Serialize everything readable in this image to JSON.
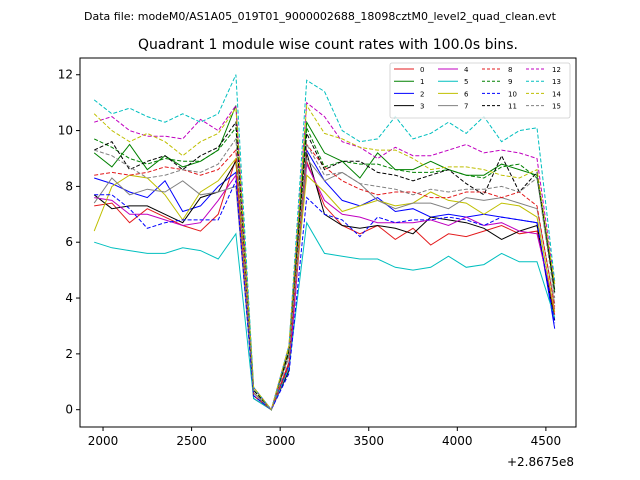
{
  "chart_data": {
    "type": "line",
    "suptitle": "Data file: modeM0/AS1A05_019T01_9000002688_18098cztM0_level2_quad_clean.evt",
    "title": "Quadrant 1 module wise count rates with 100.0s bins.",
    "xlabel": "",
    "ylabel": "",
    "x_offset_label": "+2.8675e8",
    "xlim": [
      1870,
      4670
    ],
    "ylim": [
      -0.62,
      12.6
    ],
    "x_ticks": [
      2000,
      2500,
      3000,
      3500,
      4000,
      4500
    ],
    "y_ticks": [
      0,
      2,
      4,
      6,
      8,
      10,
      12
    ],
    "x": [
      1950,
      2050,
      2150,
      2250,
      2350,
      2450,
      2550,
      2650,
      2750,
      2850,
      2950,
      3050,
      3150,
      3250,
      3350,
      3450,
      3550,
      3650,
      3750,
      3850,
      3950,
      4050,
      4150,
      4250,
      4350,
      4450,
      4550
    ],
    "legend": {
      "location": "upper-right",
      "columns": 4
    },
    "series": [
      {
        "name": "0",
        "color": "#e31a1c",
        "dash": "solid",
        "values": [
          7.3,
          7.4,
          6.7,
          7.2,
          6.9,
          6.6,
          6.4,
          7.0,
          9.0,
          0.5,
          0.0,
          1.7,
          8.9,
          7.3,
          6.6,
          6.3,
          6.6,
          6.1,
          6.5,
          5.9,
          6.3,
          6.2,
          6.4,
          6.6,
          6.3,
          6.4,
          3.4
        ]
      },
      {
        "name": "1",
        "color": "#008000",
        "dash": "solid",
        "values": [
          9.2,
          8.7,
          9.5,
          8.6,
          9.1,
          8.7,
          8.9,
          9.3,
          10.9,
          0.8,
          0.0,
          2.2,
          10.3,
          9.2,
          8.9,
          8.3,
          9.2,
          8.6,
          8.6,
          8.9,
          8.6,
          8.4,
          8.4,
          8.8,
          8.6,
          8.4,
          4.3
        ]
      },
      {
        "name": "2",
        "color": "#0000ff",
        "dash": "solid",
        "values": [
          8.3,
          8.1,
          7.8,
          7.6,
          8.2,
          7.1,
          7.3,
          8.0,
          8.5,
          0.5,
          0.0,
          1.6,
          9.3,
          8.2,
          7.5,
          7.3,
          7.6,
          7.1,
          7.2,
          6.9,
          7.0,
          6.9,
          7.0,
          6.9,
          6.8,
          6.7,
          2.9
        ]
      },
      {
        "name": "3",
        "color": "#000000",
        "dash": "solid",
        "values": [
          7.7,
          7.2,
          7.3,
          7.3,
          7.0,
          6.7,
          7.6,
          7.8,
          8.9,
          0.4,
          0.0,
          1.4,
          9.2,
          7.0,
          6.6,
          6.5,
          6.6,
          6.5,
          6.3,
          6.9,
          6.8,
          6.7,
          6.5,
          6.1,
          6.4,
          6.6,
          3.2
        ]
      },
      {
        "name": "4",
        "color": "#c000c0",
        "dash": "solid",
        "values": [
          7.6,
          7.5,
          7.0,
          7.0,
          6.8,
          6.6,
          6.7,
          7.5,
          8.4,
          0.6,
          0.0,
          1.5,
          8.8,
          7.5,
          7.0,
          6.9,
          6.7,
          6.7,
          6.7,
          6.8,
          6.6,
          6.9,
          6.6,
          6.7,
          6.4,
          6.3,
          3.6
        ]
      },
      {
        "name": "5",
        "color": "#00bfbf",
        "dash": "solid",
        "values": [
          6.0,
          5.8,
          5.7,
          5.6,
          5.6,
          5.8,
          5.7,
          5.4,
          6.3,
          0.4,
          0.0,
          1.5,
          6.7,
          5.6,
          5.5,
          5.4,
          5.4,
          5.1,
          5.0,
          5.1,
          5.5,
          5.1,
          5.2,
          5.6,
          5.3,
          5.3,
          3.3
        ]
      },
      {
        "name": "6",
        "color": "#bfbf00",
        "dash": "solid",
        "values": [
          6.4,
          8.0,
          8.4,
          8.3,
          7.7,
          6.8,
          7.8,
          8.2,
          9.0,
          0.6,
          0.0,
          2.2,
          8.4,
          7.8,
          7.1,
          7.3,
          7.5,
          7.3,
          7.4,
          7.8,
          7.5,
          7.4,
          7.0,
          7.4,
          7.3,
          6.9,
          3.5
        ]
      },
      {
        "name": "7",
        "color": "#808080",
        "dash": "solid",
        "values": [
          7.4,
          8.3,
          7.7,
          7.9,
          7.8,
          8.2,
          7.7,
          7.8,
          8.0,
          0.6,
          0.0,
          2.0,
          9.0,
          8.2,
          8.5,
          8.1,
          7.5,
          7.2,
          7.4,
          7.4,
          7.2,
          7.6,
          7.5,
          7.6,
          7.4,
          7.2,
          3.8
        ]
      },
      {
        "name": "8",
        "color": "#e31a1c",
        "dash": "dashed",
        "values": [
          8.4,
          8.5,
          8.4,
          8.5,
          8.7,
          8.6,
          8.4,
          8.6,
          9.3,
          0.5,
          0.0,
          1.6,
          9.5,
          8.7,
          8.2,
          7.9,
          7.7,
          7.8,
          7.8,
          7.6,
          7.6,
          7.8,
          7.8,
          7.6,
          7.8,
          7.3,
          3.7
        ]
      },
      {
        "name": "9",
        "color": "#008000",
        "dash": "dashed",
        "values": [
          9.7,
          9.4,
          9.0,
          8.8,
          9.0,
          8.9,
          8.9,
          9.3,
          10.1,
          0.7,
          0.0,
          2.1,
          10.1,
          8.7,
          8.9,
          8.8,
          8.8,
          8.6,
          8.5,
          8.5,
          8.6,
          8.4,
          8.3,
          8.7,
          8.8,
          8.3,
          4.2
        ]
      },
      {
        "name": "10",
        "color": "#0000ff",
        "dash": "dashed",
        "values": [
          7.7,
          7.7,
          7.2,
          6.5,
          6.7,
          6.8,
          6.8,
          6.8,
          8.2,
          0.5,
          0.0,
          1.3,
          7.6,
          7.0,
          6.8,
          6.2,
          6.9,
          6.7,
          6.8,
          6.8,
          6.9,
          6.8,
          6.6,
          6.9,
          6.8,
          6.7,
          3.1
        ]
      },
      {
        "name": "11",
        "color": "#000000",
        "dash": "dashed",
        "values": [
          9.3,
          9.6,
          8.6,
          8.9,
          9.1,
          8.6,
          9.1,
          9.4,
          10.3,
          0.7,
          0.0,
          2.1,
          9.9,
          8.6,
          8.9,
          8.9,
          8.5,
          8.4,
          8.2,
          8.4,
          8.6,
          8.1,
          7.7,
          9.1,
          7.8,
          8.5,
          4.2
        ]
      },
      {
        "name": "12",
        "color": "#c000c0",
        "dash": "dashed",
        "values": [
          10.3,
          10.5,
          10.0,
          9.8,
          9.8,
          9.7,
          10.4,
          10.0,
          10.9,
          0.8,
          0.0,
          2.3,
          11.0,
          10.5,
          9.6,
          9.4,
          9.0,
          9.4,
          9.1,
          9.1,
          9.3,
          9.5,
          9.2,
          9.3,
          9.2,
          9.0,
          4.5
        ]
      },
      {
        "name": "13",
        "color": "#00bfbf",
        "dash": "dashed",
        "values": [
          11.1,
          10.6,
          10.8,
          10.5,
          10.3,
          10.6,
          10.3,
          10.6,
          12.0,
          0.8,
          0.0,
          2.3,
          11.8,
          11.4,
          10.0,
          9.6,
          9.7,
          10.5,
          9.7,
          9.9,
          10.3,
          9.9,
          10.5,
          9.6,
          10.0,
          10.1,
          4.6
        ]
      },
      {
        "name": "14",
        "color": "#bfbf00",
        "dash": "dashed",
        "values": [
          10.6,
          10.0,
          9.6,
          9.9,
          9.6,
          9.1,
          9.6,
          9.9,
          10.8,
          0.8,
          0.0,
          2.3,
          10.9,
          9.9,
          9.7,
          9.4,
          9.3,
          9.3,
          9.0,
          8.6,
          8.7,
          8.7,
          8.6,
          8.4,
          8.3,
          8.6,
          4.5
        ]
      },
      {
        "name": "15",
        "color": "#808080",
        "dash": "dashed",
        "values": [
          9.3,
          9.1,
          8.7,
          8.3,
          8.4,
          8.6,
          8.5,
          8.8,
          9.7,
          0.6,
          0.0,
          1.9,
          9.5,
          8.4,
          8.5,
          8.1,
          8.0,
          7.9,
          7.7,
          7.9,
          7.8,
          7.9,
          7.9,
          8.0,
          7.8,
          8.3,
          4.0
        ]
      }
    ]
  }
}
